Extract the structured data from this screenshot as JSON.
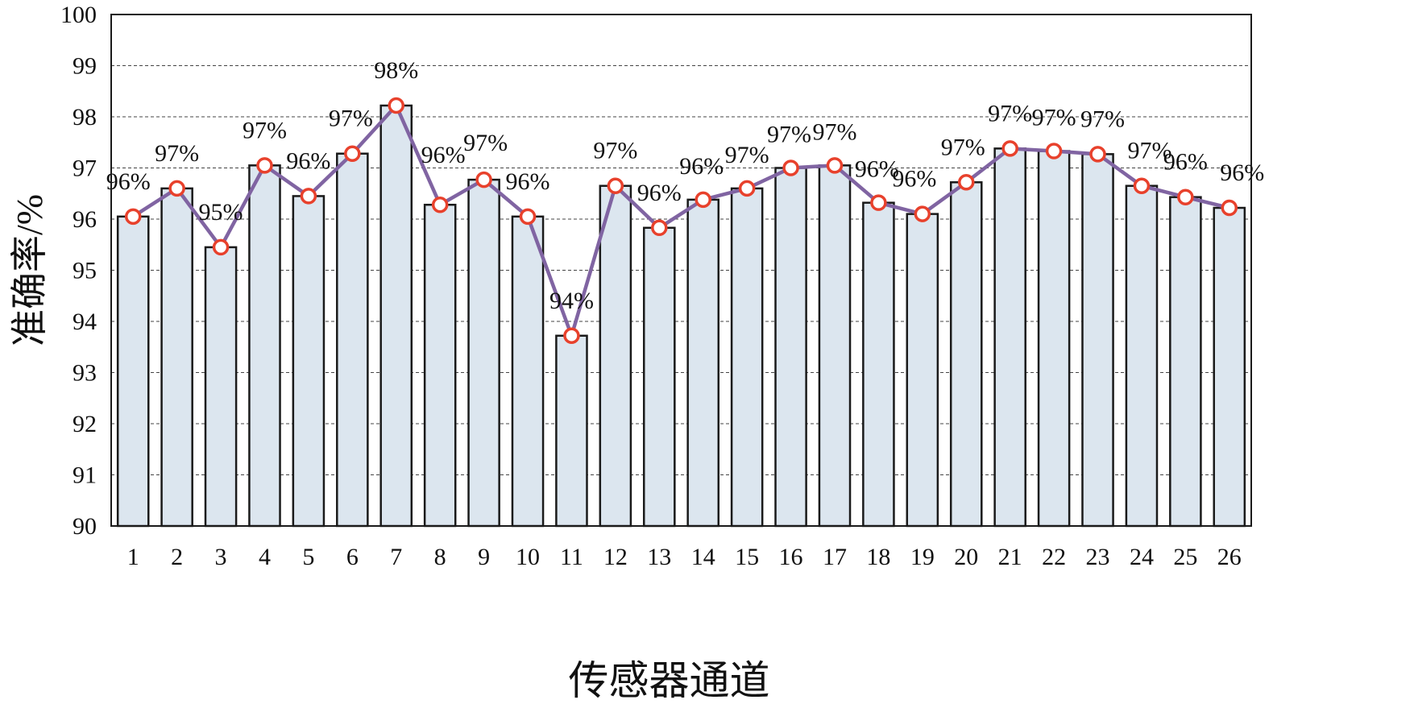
{
  "chart_data": {
    "type": "bar",
    "xlabel": "传感器通道",
    "ylabel": "准确率/%",
    "ylim": [
      90,
      100
    ],
    "yticks": [
      90,
      91,
      92,
      93,
      94,
      95,
      96,
      97,
      98,
      99,
      100
    ],
    "grid": "horizontal dashed",
    "categories": [
      "1",
      "2",
      "3",
      "4",
      "5",
      "6",
      "7",
      "8",
      "9",
      "10",
      "11",
      "12",
      "13",
      "14",
      "15",
      "16",
      "17",
      "18",
      "19",
      "20",
      "21",
      "22",
      "23",
      "24",
      "25",
      "26"
    ],
    "values": [
      96.05,
      96.6,
      95.45,
      97.05,
      96.45,
      97.28,
      98.22,
      96.28,
      96.77,
      96.05,
      93.72,
      96.65,
      95.83,
      96.38,
      96.6,
      97.0,
      97.05,
      96.32,
      96.1,
      96.72,
      97.38,
      97.33,
      97.27,
      96.65,
      96.43,
      96.22
    ],
    "data_labels": [
      "96%",
      "97%",
      "95%",
      "97%",
      "96%",
      "97%",
      "98%",
      "96%",
      "97%",
      "96%",
      "94%",
      "97%",
      "96%",
      "96%",
      "97%",
      "97%",
      "97%",
      "96%",
      "96%",
      "97%",
      "97%",
      "97%",
      "97%",
      "97%",
      "96%",
      "96%"
    ],
    "overlay": "line with circular markers connecting bar tops",
    "colors": {
      "bar_fill": "#dce6ef",
      "bar_stroke": "#1a1a1a",
      "line": "#8064a2",
      "marker_stroke": "#e8412c",
      "marker_fill": "#ffffff",
      "grid": "#444444"
    }
  }
}
